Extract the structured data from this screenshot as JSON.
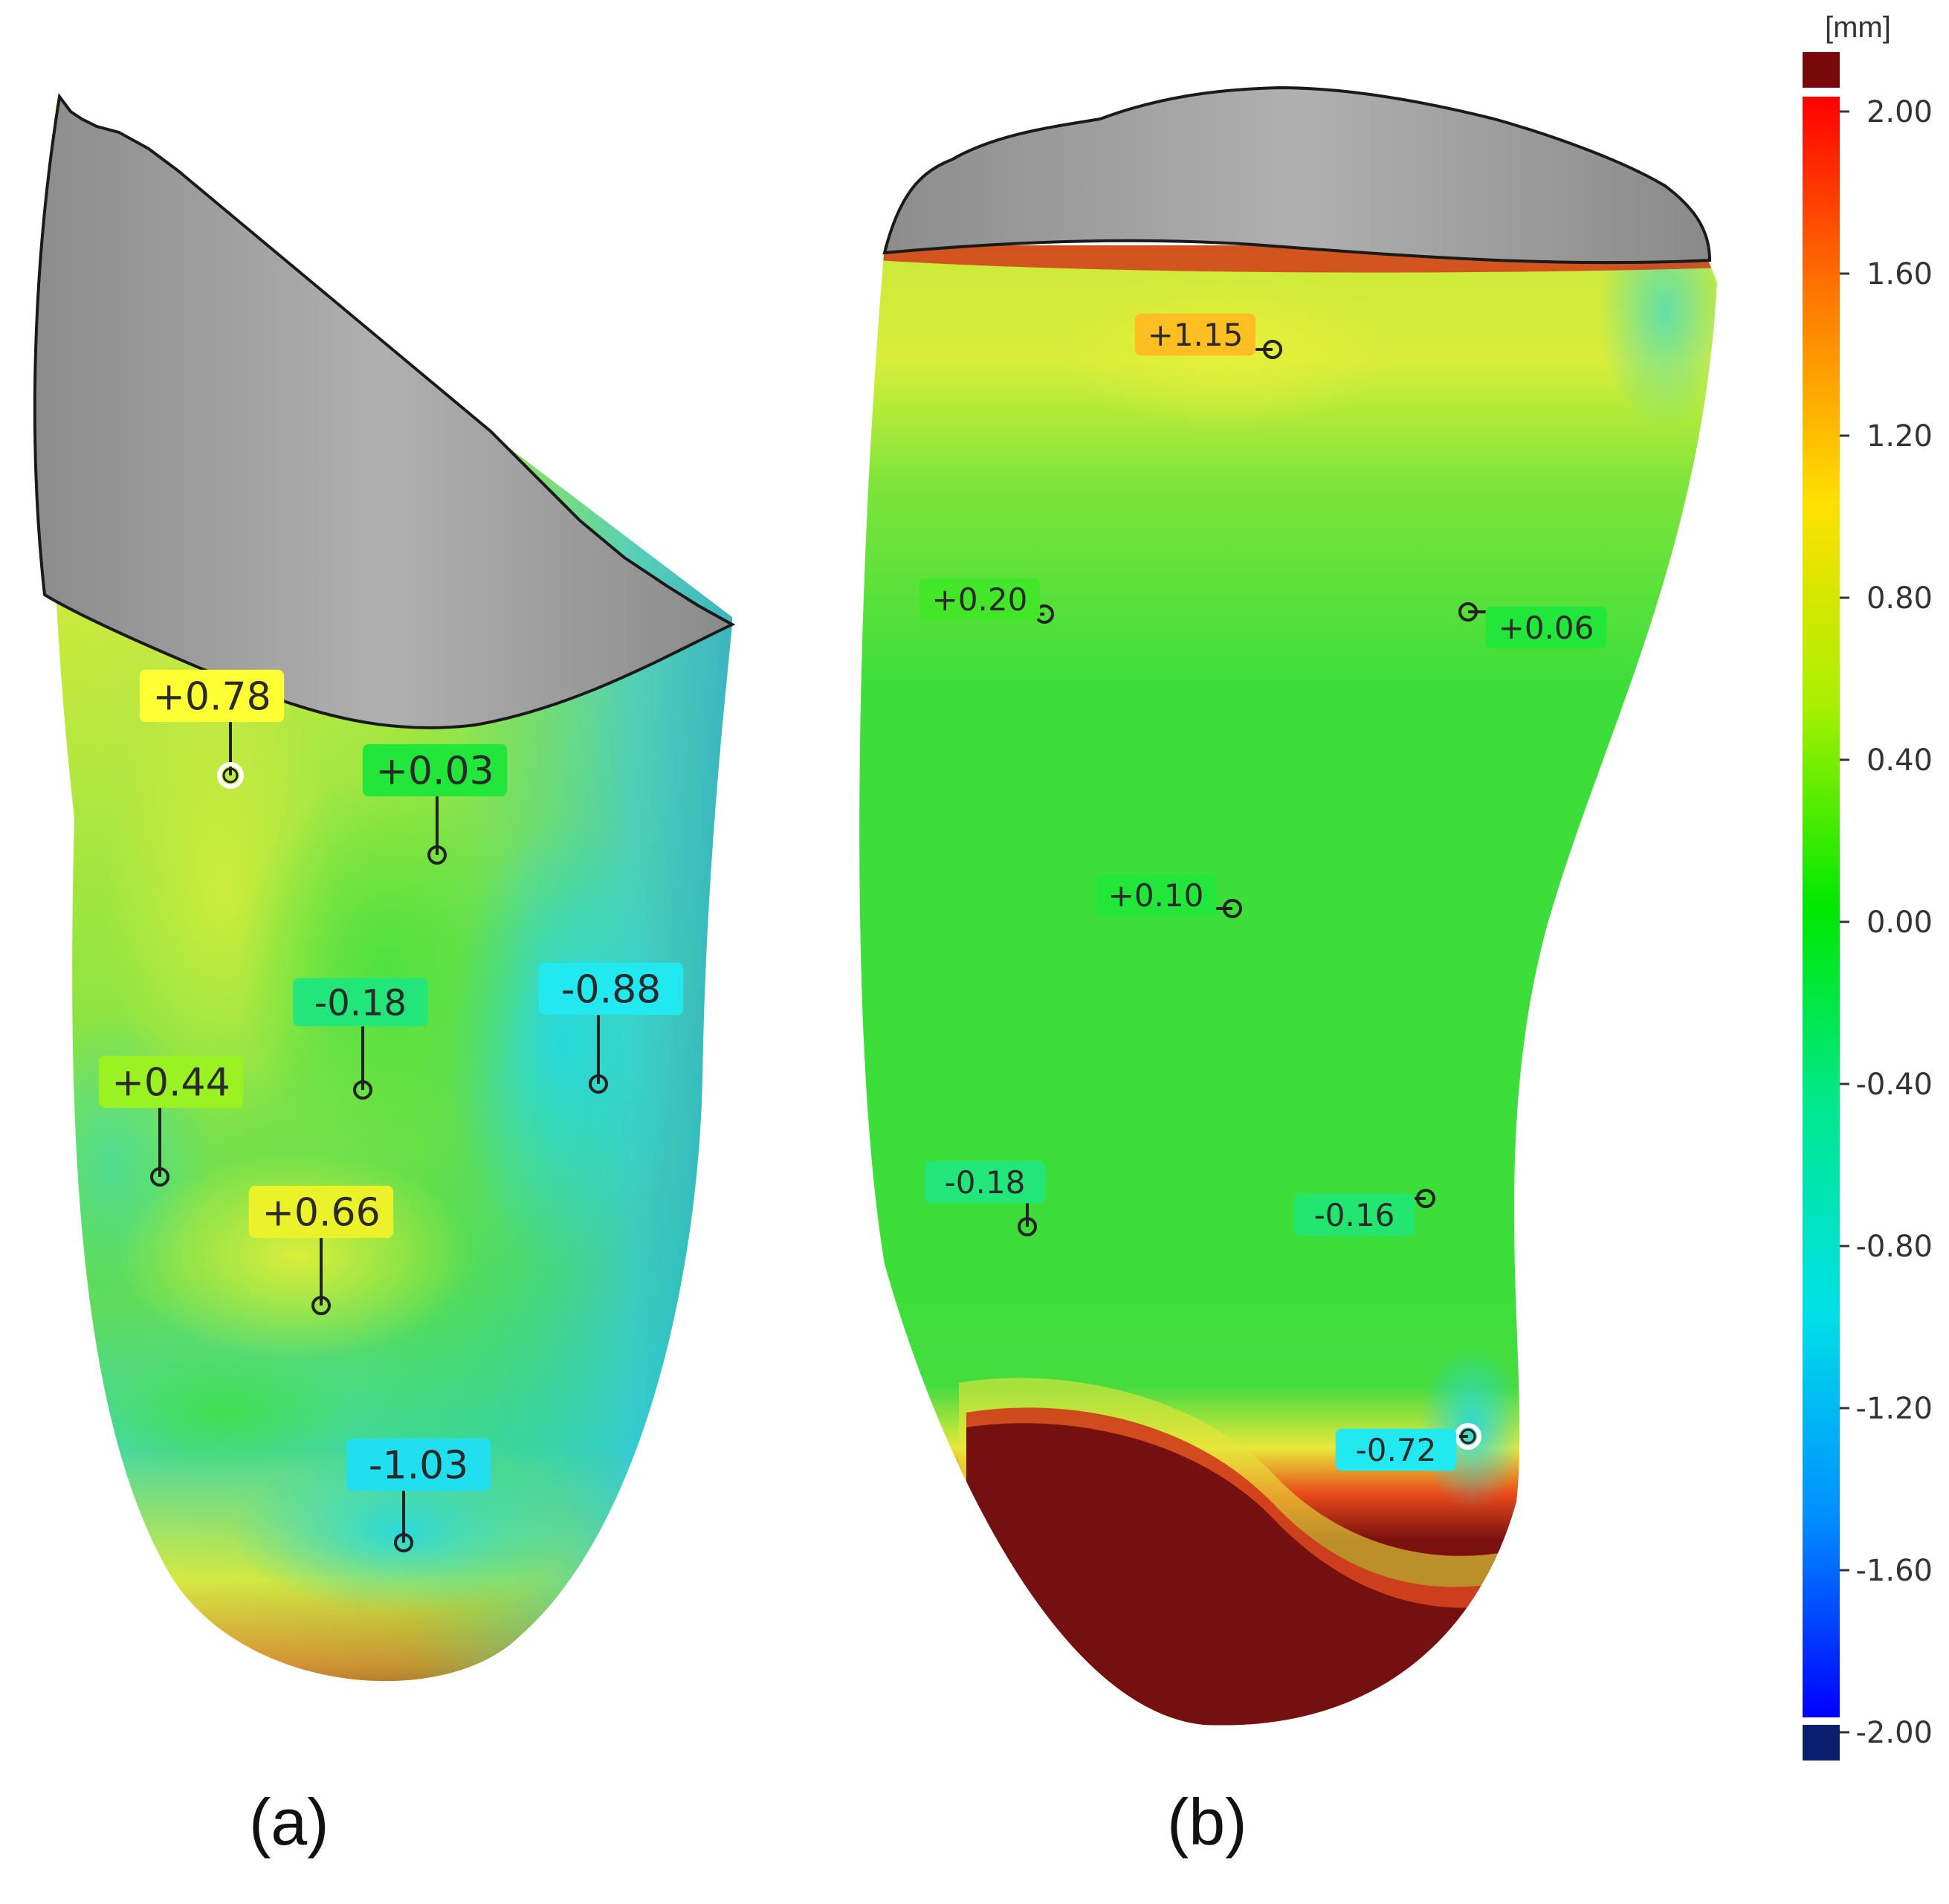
{
  "colorbar": {
    "unit": "[mm]",
    "ticks": [
      "2.00",
      "1.60",
      "1.20",
      "0.80",
      "0.40",
      "0.00",
      "-0.40",
      "-0.80",
      "-1.20",
      "-1.60",
      "-2.00"
    ],
    "over_color": "#7a0a0a",
    "under_color": "#0a1e70",
    "gradient": [
      "#ff0000",
      "#ff7a00",
      "#ffe000",
      "#a8f000",
      "#00e800",
      "#00e890",
      "#00e0e8",
      "#0090ff",
      "#0000ff"
    ]
  },
  "models": [
    {
      "caption": "(a)",
      "labels": [
        {
          "text": "+0.78",
          "bg": "#ffff33"
        },
        {
          "text": "+0.03",
          "bg": "#22e63a"
        },
        {
          "text": "-0.18",
          "bg": "#22e67a"
        },
        {
          "text": "-0.88",
          "bg": "#22e8f0"
        },
        {
          "text": "+0.44",
          "bg": "#9af222"
        },
        {
          "text": "+0.66",
          "bg": "#ecf22a"
        },
        {
          "text": "-1.03",
          "bg": "#22dff0"
        }
      ]
    },
    {
      "caption": "(b)",
      "labels": [
        {
          "text": "+1.15",
          "bg": "#ffbe22"
        },
        {
          "text": "+0.20",
          "bg": "#44e62a"
        },
        {
          "text": "+0.06",
          "bg": "#22e63a"
        },
        {
          "text": "+0.10",
          "bg": "#22e63a"
        },
        {
          "text": "-0.18",
          "bg": "#22e67a"
        },
        {
          "text": "-0.16",
          "bg": "#22e670"
        },
        {
          "text": "-0.72",
          "bg": "#22e8f0"
        }
      ]
    }
  ]
}
